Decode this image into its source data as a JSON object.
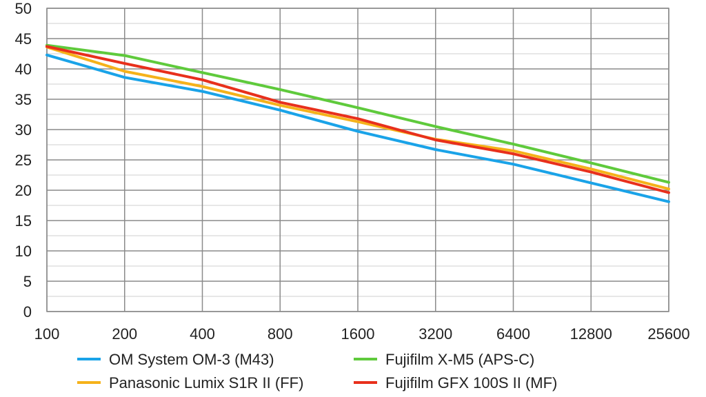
{
  "chart_data": {
    "type": "line",
    "title": "",
    "xlabel": "",
    "ylabel": "",
    "x_scale": "log2",
    "categories": [
      "100",
      "200",
      "400",
      "800",
      "1600",
      "3200",
      "6400",
      "12800",
      "25600"
    ],
    "ylim": [
      0,
      50
    ],
    "yticks": [
      "0",
      "5",
      "10",
      "15",
      "20",
      "25",
      "30",
      "35",
      "40",
      "45",
      "50"
    ],
    "ytick_values": [
      0,
      5,
      10,
      15,
      20,
      25,
      30,
      35,
      40,
      45,
      50
    ],
    "minor_gridlines_y": [
      2.5,
      7.5,
      12.5,
      17.5,
      22.5,
      27.5,
      32.5,
      37.5,
      42.5,
      47.5
    ],
    "legend_position": "bottom",
    "draw_order": [
      1,
      2,
      3,
      0
    ],
    "series": [
      {
        "name": "OM System OM-3 (M43)",
        "color": "#1aa3e8",
        "values": [
          42.3,
          38.6,
          36.3,
          33.2,
          29.7,
          26.7,
          24.3,
          21.2,
          18.1
        ]
      },
      {
        "name": "Fujifilm X-M5 (APS-C)",
        "color": "#5fca3c",
        "values": [
          43.9,
          42.2,
          39.4,
          36.6,
          33.6,
          30.5,
          27.6,
          24.5,
          21.3
        ]
      },
      {
        "name": "Panasonic Lumix S1R II (FF)",
        "color": "#f5b21a",
        "values": [
          43.6,
          39.6,
          37.1,
          34.0,
          31.3,
          28.4,
          26.5,
          23.5,
          20.2
        ]
      },
      {
        "name": "Fujifilm GFX 100S II (MF)",
        "color": "#e8301c",
        "values": [
          43.7,
          40.9,
          38.2,
          34.5,
          31.8,
          28.3,
          26.0,
          23.0,
          19.6
        ]
      }
    ]
  }
}
